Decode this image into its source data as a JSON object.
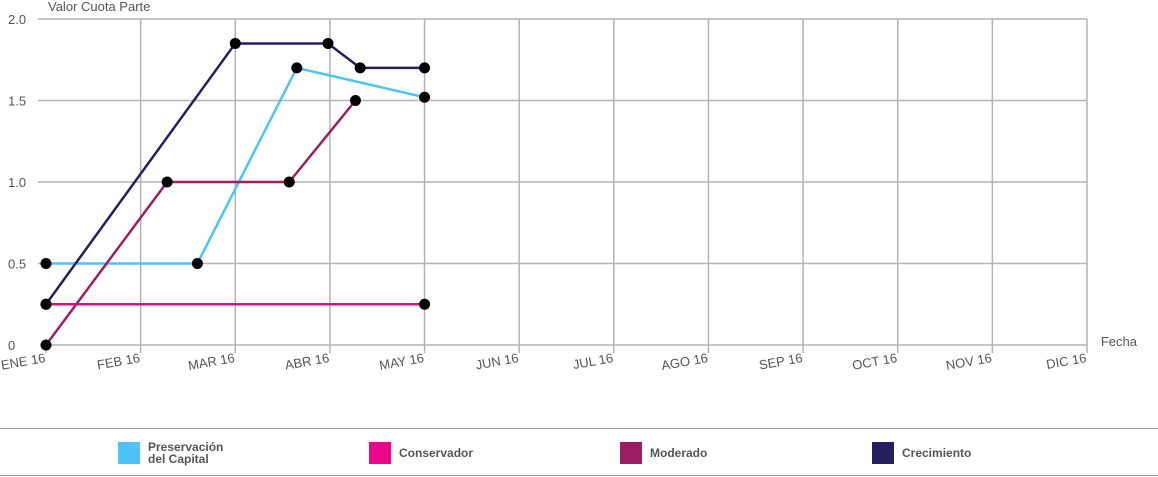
{
  "chart_data": {
    "type": "line",
    "ylabel": "Valor Cuota Parte",
    "xlabel": "Fecha",
    "ylim": [
      0,
      2.0
    ],
    "y_ticks": [
      "0",
      "0.5",
      "1.0",
      "1.5",
      "2.0"
    ],
    "y_tick_values": [
      0,
      0.5,
      1.0,
      1.5,
      2.0
    ],
    "x_ticks": [
      "ENE 16",
      "FEB 16",
      "MAR 16",
      "ABR 16",
      "MAY 16",
      "JUN 16",
      "JUL 16",
      "AGO 16",
      "SEP 16",
      "OCT 16",
      "NOV 16",
      "DIC 16"
    ],
    "xlim": [
      0,
      11
    ],
    "grid": true,
    "legend_position": "bottom",
    "series": [
      {
        "name": "Preservación\ndel Capital",
        "color": "#4dc4f5",
        "points": [
          [
            0,
            0.5
          ],
          [
            1.6,
            0.5
          ],
          [
            2.65,
            1.7
          ],
          [
            4.0,
            1.52
          ]
        ]
      },
      {
        "name": "Conservador",
        "color": "#e8068b",
        "points": [
          [
            0,
            0.25
          ],
          [
            4.0,
            0.25
          ]
        ]
      },
      {
        "name": "Moderado",
        "color": "#9a1f63",
        "points": [
          [
            0,
            0.0
          ],
          [
            1.28,
            1.0
          ],
          [
            2.57,
            1.0
          ],
          [
            3.27,
            1.5
          ]
        ]
      },
      {
        "name": "Crecimiento",
        "color": "#242060",
        "points": [
          [
            0,
            0.25
          ],
          [
            2.0,
            1.85
          ],
          [
            2.98,
            1.85
          ],
          [
            3.32,
            1.7
          ],
          [
            4.0,
            1.7
          ]
        ]
      }
    ]
  }
}
